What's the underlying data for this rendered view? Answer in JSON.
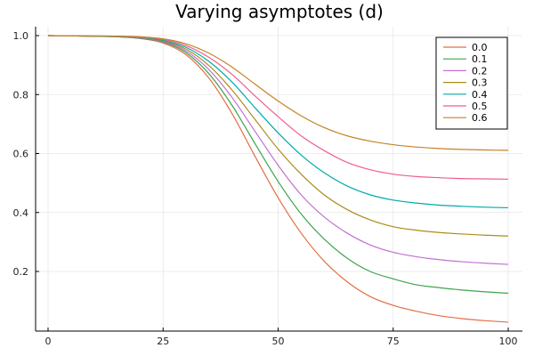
{
  "chart_data": {
    "type": "line",
    "title": "Varying asymptotes (d)",
    "xlabel": "",
    "ylabel": "",
    "xlim": [
      0,
      100
    ],
    "ylim": [
      0.0,
      1.0
    ],
    "xticks": [
      0,
      25,
      50,
      75,
      100
    ],
    "yticks": [
      0.2,
      0.4,
      0.6,
      0.8,
      1.0
    ],
    "xtick_labels": [
      "0",
      "25",
      "50",
      "75",
      "100"
    ],
    "ytick_labels": [
      "0.2",
      "0.4",
      "0.6",
      "0.8",
      "1.0"
    ],
    "grid": true,
    "legend_position": "top-right",
    "x": [
      0,
      5,
      10,
      15,
      20,
      25,
      30,
      35,
      40,
      45,
      50,
      55,
      60,
      65,
      70,
      75,
      80,
      85,
      90,
      95,
      100
    ],
    "series": [
      {
        "name": "0.0",
        "color": "#E26F46",
        "values": [
          1.0,
          0.999,
          0.998,
          0.996,
          0.99,
          0.975,
          0.935,
          0.855,
          0.735,
          0.59,
          0.45,
          0.33,
          0.235,
          0.165,
          0.115,
          0.085,
          0.065,
          0.05,
          0.04,
          0.033,
          0.028
        ]
      },
      {
        "name": "0.1",
        "color": "#3DA44D",
        "values": [
          1.0,
          0.999,
          0.998,
          0.996,
          0.991,
          0.978,
          0.942,
          0.87,
          0.763,
          0.633,
          0.505,
          0.395,
          0.31,
          0.245,
          0.2,
          0.175,
          0.155,
          0.145,
          0.137,
          0.131,
          0.126
        ]
      },
      {
        "name": "0.2",
        "color": "#C271D2",
        "values": [
          1.0,
          0.999,
          0.998,
          0.997,
          0.992,
          0.98,
          0.948,
          0.884,
          0.79,
          0.675,
          0.56,
          0.46,
          0.385,
          0.33,
          0.29,
          0.265,
          0.25,
          0.24,
          0.233,
          0.228,
          0.224
        ]
      },
      {
        "name": "0.3",
        "color": "#AC8D18",
        "values": [
          1.0,
          0.999,
          0.998,
          0.997,
          0.993,
          0.982,
          0.954,
          0.898,
          0.815,
          0.715,
          0.615,
          0.53,
          0.46,
          0.41,
          0.375,
          0.352,
          0.34,
          0.332,
          0.327,
          0.323,
          0.32
        ]
      },
      {
        "name": "0.4",
        "color": "#00A9AD",
        "values": [
          1.0,
          0.999,
          0.998,
          0.997,
          0.994,
          0.984,
          0.96,
          0.912,
          0.842,
          0.755,
          0.67,
          0.595,
          0.535,
          0.49,
          0.46,
          0.442,
          0.432,
          0.425,
          0.421,
          0.418,
          0.416
        ]
      },
      {
        "name": "0.5",
        "color": "#ED5E93",
        "values": [
          1.0,
          0.999,
          0.999,
          0.998,
          0.995,
          0.987,
          0.966,
          0.926,
          0.868,
          0.795,
          0.725,
          0.66,
          0.61,
          0.57,
          0.545,
          0.53,
          0.522,
          0.518,
          0.515,
          0.514,
          0.513
        ]
      },
      {
        "name": "0.6",
        "color": "#C68225",
        "values": [
          1.0,
          0.999,
          0.999,
          0.998,
          0.996,
          0.989,
          0.972,
          0.94,
          0.893,
          0.835,
          0.778,
          0.728,
          0.688,
          0.66,
          0.642,
          0.63,
          0.622,
          0.617,
          0.614,
          0.612,
          0.611
        ]
      }
    ]
  }
}
